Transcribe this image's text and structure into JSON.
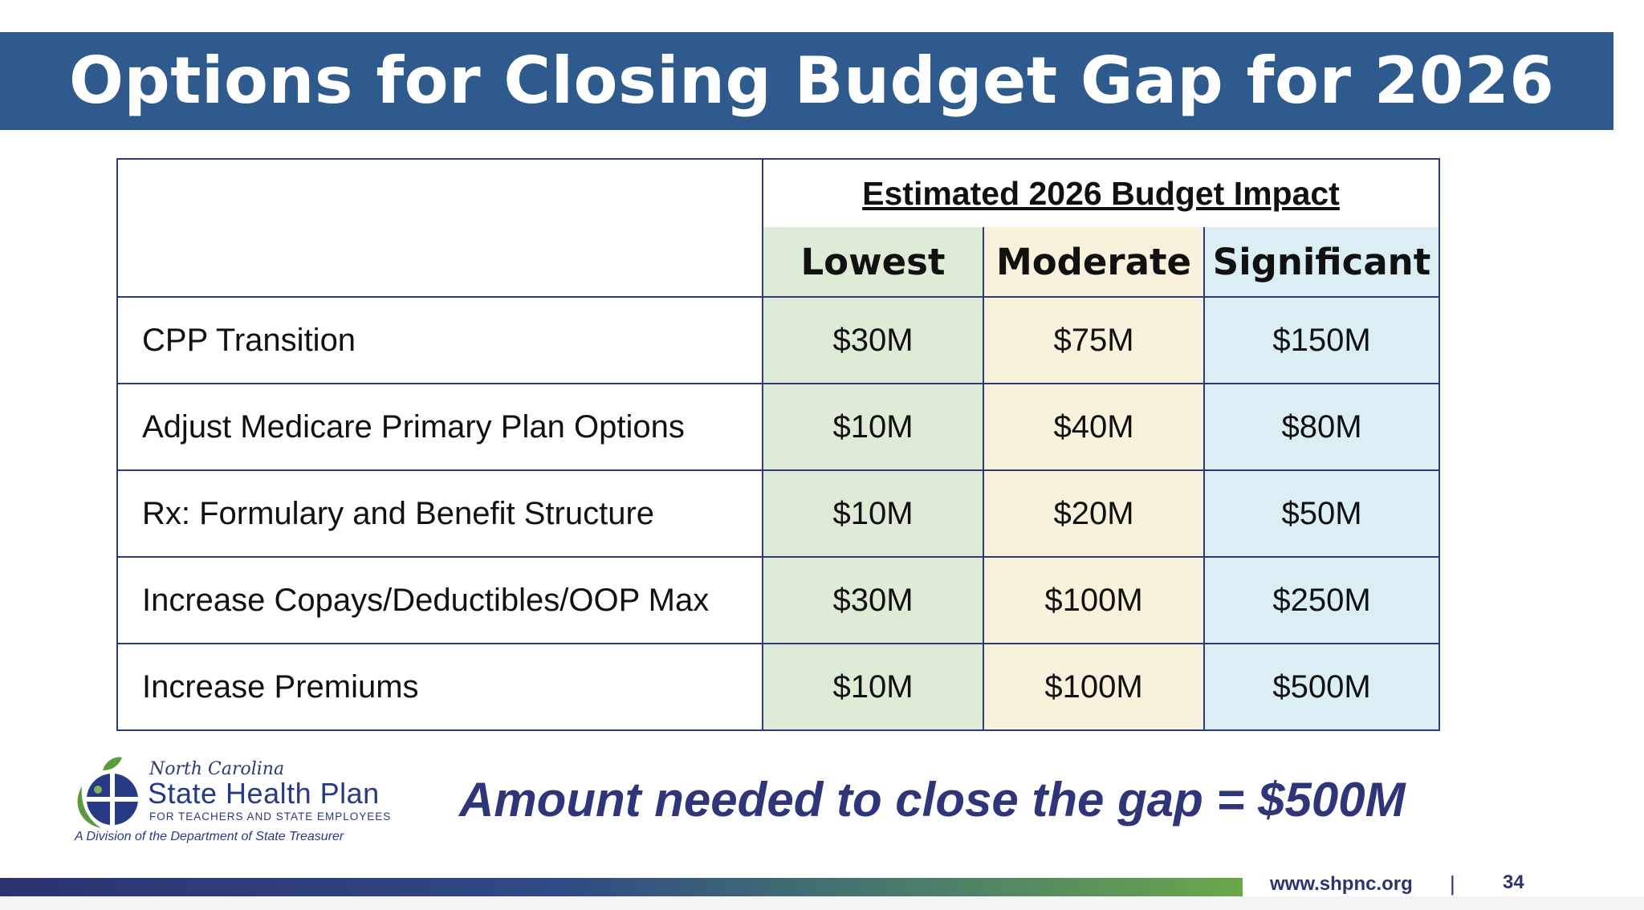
{
  "slide": {
    "title": "Options for Closing Budget Gap for 2026"
  },
  "table": {
    "group_header": "Estimated 2026 Budget Impact",
    "tiers": [
      "Lowest",
      "Moderate",
      "Significant"
    ],
    "colors": {
      "lowest": "#deebd7",
      "moderate": "#f8f1dc",
      "significant": "#dbeef4",
      "border": "#2f3a78"
    },
    "rows": [
      {
        "label": "CPP Transition",
        "lowest": "$30M",
        "moderate": "$75M",
        "significant": "$150M"
      },
      {
        "label": "Adjust Medicare Primary Plan Options",
        "lowest": "$10M",
        "moderate": "$40M",
        "significant": "$80M"
      },
      {
        "label": "Rx: Formulary and Benefit Structure",
        "lowest": "$10M",
        "moderate": "$20M",
        "significant": "$50M"
      },
      {
        "label": "Increase Copays/Deductibles/OOP Max",
        "lowest": "$30M",
        "moderate": "$100M",
        "significant": "$250M"
      },
      {
        "label": "Increase Premiums",
        "lowest": "$10M",
        "moderate": "$100M",
        "significant": "$500M"
      }
    ]
  },
  "logo": {
    "state": "North Carolina",
    "name": "State Health Plan",
    "tagline": "FOR TEACHERS AND STATE EMPLOYEES",
    "division": "A Division of the Department of State Treasurer",
    "icon": "globe-leaf-logo-icon"
  },
  "summary": "Amount needed to close the gap = $500M",
  "footer": {
    "url": "www.shpnc.org",
    "separator": "|",
    "page_number": "34"
  },
  "brand_colors": {
    "title_bar": "#2e5a8e",
    "navy": "#2e3578"
  }
}
